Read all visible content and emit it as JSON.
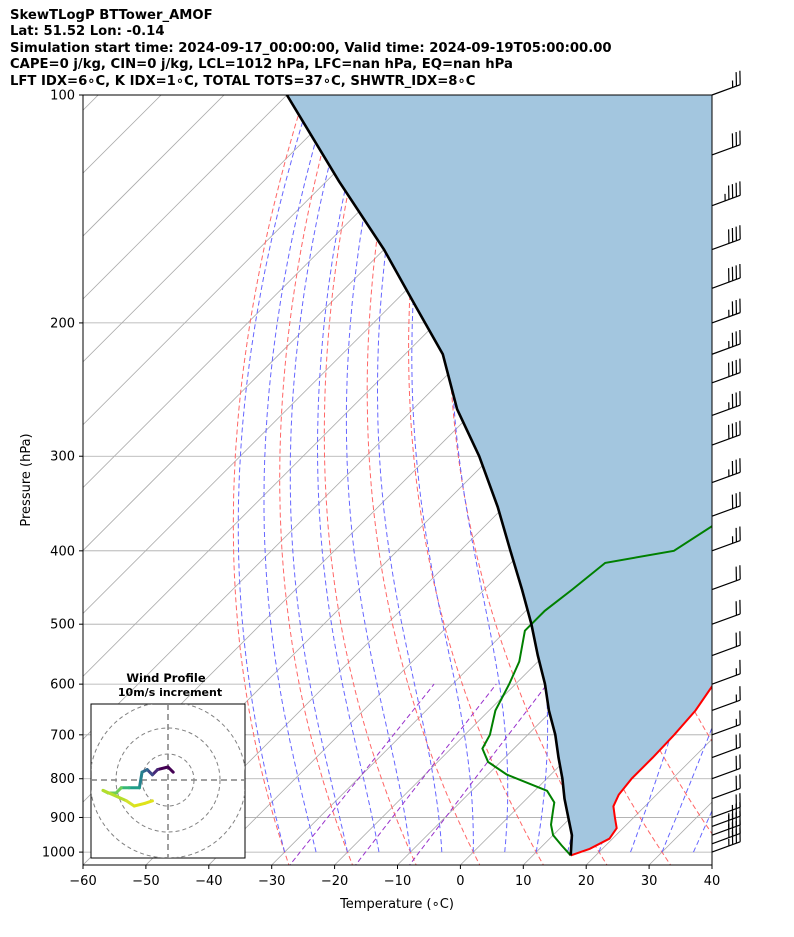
{
  "header": {
    "line1": "SkewTLogP BTTower_AMOF",
    "line2": "Lat: 51.52   Lon: -0.14",
    "line3": "Simulation start time: 2024-09-17_00:00:00, Valid time: 2024-09-19T05:00:00.00",
    "line4": "CAPE=0 j/kg, CIN=0 j/kg, LCL=1012 hPa, LFC=nan hPa, EQ=nan hPa",
    "line5": "LFT IDX=6∘C, K IDX=1∘C, TOTAL TOTS=37∘C, SHWTR_IDX=8∘C"
  },
  "colors": {
    "temperature": "#ff0000",
    "dewpoint": "#008000",
    "parcel": "#000000",
    "cape_fill": "#a3c6df",
    "dry_adiabats": "#ff6666",
    "moist_adiabats": "#6666ff",
    "mixing_ratio": "#9932cc",
    "isotherms": "#aaaaaa"
  },
  "chart_data": {
    "type": "line",
    "title": "",
    "xlabel": "Temperature (∘C)",
    "ylabel": "Pressure (hPa)",
    "xlim": [
      -60,
      40
    ],
    "ylim": [
      1040,
      100
    ],
    "y_scale": "log",
    "skew": true,
    "grid": true,
    "x_ticks": [
      "−60",
      "−50",
      "−40",
      "−30",
      "−20",
      "−10",
      "0",
      "10",
      "20",
      "30",
      "40"
    ],
    "y_ticks": [
      "100",
      "200",
      "300",
      "400",
      "500",
      "600",
      "700",
      "800",
      "900",
      "1000"
    ],
    "series": [
      {
        "name": "",
        "role": "temperature",
        "color": "#ff0000",
        "points": [
          [
            16,
            1010
          ],
          [
            18,
            990
          ],
          [
            19.5,
            960
          ],
          [
            19,
            930
          ],
          [
            17,
            900
          ],
          [
            15,
            870
          ],
          [
            14,
            840
          ],
          [
            13.5,
            800
          ],
          [
            13.5,
            750
          ],
          [
            13.3,
            700
          ],
          [
            12.8,
            650
          ],
          [
            11.5,
            600
          ],
          [
            8.5,
            520
          ],
          [
            6,
            470
          ],
          [
            1,
            400
          ],
          [
            -4,
            340
          ],
          [
            -14,
            270
          ],
          [
            -20,
            233
          ],
          [
            -22,
            220
          ],
          [
            -24,
            205
          ],
          [
            -24,
            190
          ],
          [
            -28,
            172
          ],
          [
            -30,
            160
          ],
          [
            -35,
            145
          ],
          [
            -38,
            132
          ],
          [
            -40,
            120
          ],
          [
            -42,
            112
          ],
          [
            -44,
            104
          ],
          [
            -45,
            100
          ]
        ]
      },
      {
        "name": "",
        "role": "dewpoint",
        "color": "#008000",
        "points": [
          [
            16,
            1010
          ],
          [
            13,
            980
          ],
          [
            10,
            950
          ],
          [
            8,
            920
          ],
          [
            6,
            880
          ],
          [
            5,
            860
          ],
          [
            2,
            830
          ],
          [
            -7,
            790
          ],
          [
            -12,
            760
          ],
          [
            -15,
            730
          ],
          [
            -16,
            700
          ],
          [
            -19,
            650
          ],
          [
            -21,
            600
          ],
          [
            -23,
            560
          ],
          [
            -27,
            510
          ],
          [
            -27,
            480
          ],
          [
            -26,
            450
          ],
          [
            -25,
            415
          ],
          [
            -16,
            400
          ],
          [
            -13,
            360
          ],
          [
            -15,
            320
          ],
          [
            -18,
            290
          ],
          [
            -24,
            260
          ],
          [
            -30,
            235
          ],
          [
            -32,
            220
          ],
          [
            -32,
            205
          ],
          [
            -34,
            192
          ],
          [
            -34,
            180
          ],
          [
            -36,
            170
          ],
          [
            -41,
            160
          ],
          [
            -45,
            150
          ],
          [
            -48,
            142
          ],
          [
            -48,
            135
          ],
          [
            -50,
            128
          ],
          [
            -51,
            120
          ],
          [
            -50,
            110
          ],
          [
            -49,
            100
          ]
        ]
      },
      {
        "name": "",
        "role": "parcel",
        "color": "#000000",
        "points": [
          [
            16,
            1010
          ],
          [
            13,
            950
          ],
          [
            9.6,
            900
          ],
          [
            6,
            850
          ],
          [
            2.5,
            800
          ],
          [
            -1.5,
            750
          ],
          [
            -5.6,
            700
          ],
          [
            -10.5,
            650
          ],
          [
            -15.3,
            600
          ],
          [
            -21,
            550
          ],
          [
            -27,
            500
          ],
          [
            -34,
            450
          ],
          [
            -42,
            400
          ],
          [
            -51,
            350
          ],
          [
            -62,
            300
          ],
          [
            -73,
            260
          ],
          [
            -84,
            220
          ],
          [
            -96,
            190
          ],
          [
            -110,
            160
          ],
          [
            -128,
            130
          ],
          [
            -150,
            100
          ]
        ]
      }
    ],
    "shaded_region": {
      "between": [
        "temperature",
        "parcel"
      ],
      "color": "#a3c6df"
    },
    "wind_barbs": {
      "pressures": [
        100,
        120,
        140,
        160,
        180,
        200,
        220,
        240,
        265,
        290,
        325,
        360,
        400,
        450,
        500,
        550,
        600,
        650,
        700,
        750,
        800,
        850,
        900,
        925,
        950,
        975,
        1000
      ],
      "speeds_kt": [
        25,
        30,
        45,
        40,
        40,
        35,
        35,
        40,
        35,
        40,
        35,
        30,
        25,
        20,
        20,
        20,
        15,
        15,
        15,
        20,
        20,
        20,
        20,
        35,
        40,
        40,
        35
      ]
    },
    "inset": {
      "title": "Wind Profile",
      "subtitle": "10m/s increment",
      "rings": [
        10,
        20,
        30
      ],
      "hodograph_u_v": [
        [
          2,
          3
        ],
        [
          0,
          5
        ],
        [
          -4,
          4
        ],
        [
          -6,
          2
        ],
        [
          -8,
          4
        ],
        [
          -10,
          3
        ],
        [
          -11,
          -3
        ],
        [
          -15,
          -3
        ],
        [
          -18,
          -3
        ],
        [
          -20,
          -5
        ],
        [
          -23,
          -5
        ],
        [
          -25,
          -4
        ],
        [
          -16,
          -8
        ],
        [
          -13,
          -10
        ],
        [
          -9,
          -9
        ],
        [
          -6,
          -8
        ]
      ],
      "hodograph_colors": [
        "#440154",
        "#440154",
        "#482878",
        "#3e4989",
        "#31688e",
        "#26828e",
        "#1f9e89",
        "#35b779",
        "#6ece58",
        "#6ece58",
        "#6ece58",
        "#b5de2b",
        "#d4e22c",
        "#dde318",
        "#e0e31a",
        "#fde725"
      ]
    }
  }
}
